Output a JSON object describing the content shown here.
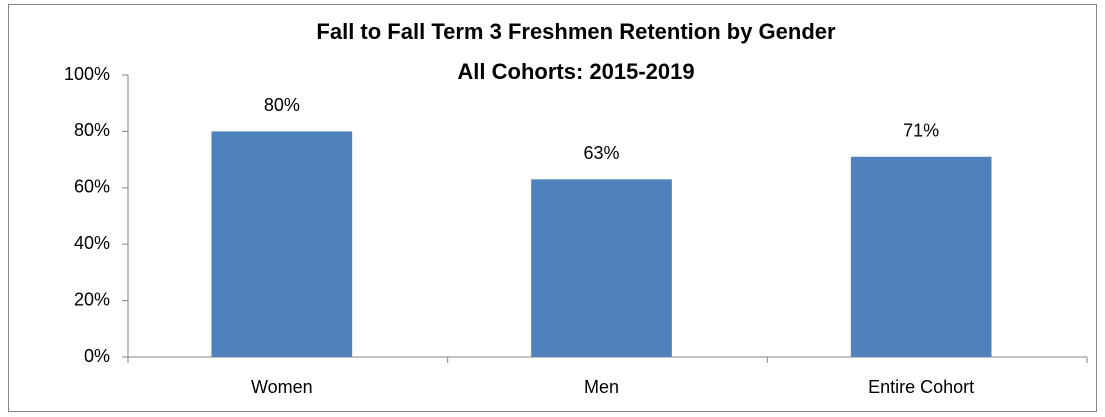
{
  "chart_data": {
    "type": "bar",
    "title": "Fall to Fall Term 3 Freshmen Retention by Gender",
    "subtitle": "All Cohorts: 2015-2019",
    "categories": [
      "Women",
      "Men",
      "Entire Cohort"
    ],
    "values": [
      80,
      63,
      71
    ],
    "value_labels": [
      "80%",
      "63%",
      "71%"
    ],
    "color": "#4f81bd",
    "ylim": [
      0,
      100
    ],
    "yticks": [
      {
        "value": 0,
        "label": "0%"
      },
      {
        "value": 20,
        "label": "20%"
      },
      {
        "value": 40,
        "label": "40%"
      },
      {
        "value": 60,
        "label": "60%"
      },
      {
        "value": 80,
        "label": "80%"
      },
      {
        "value": 100,
        "label": "100%"
      }
    ],
    "grid": false
  }
}
